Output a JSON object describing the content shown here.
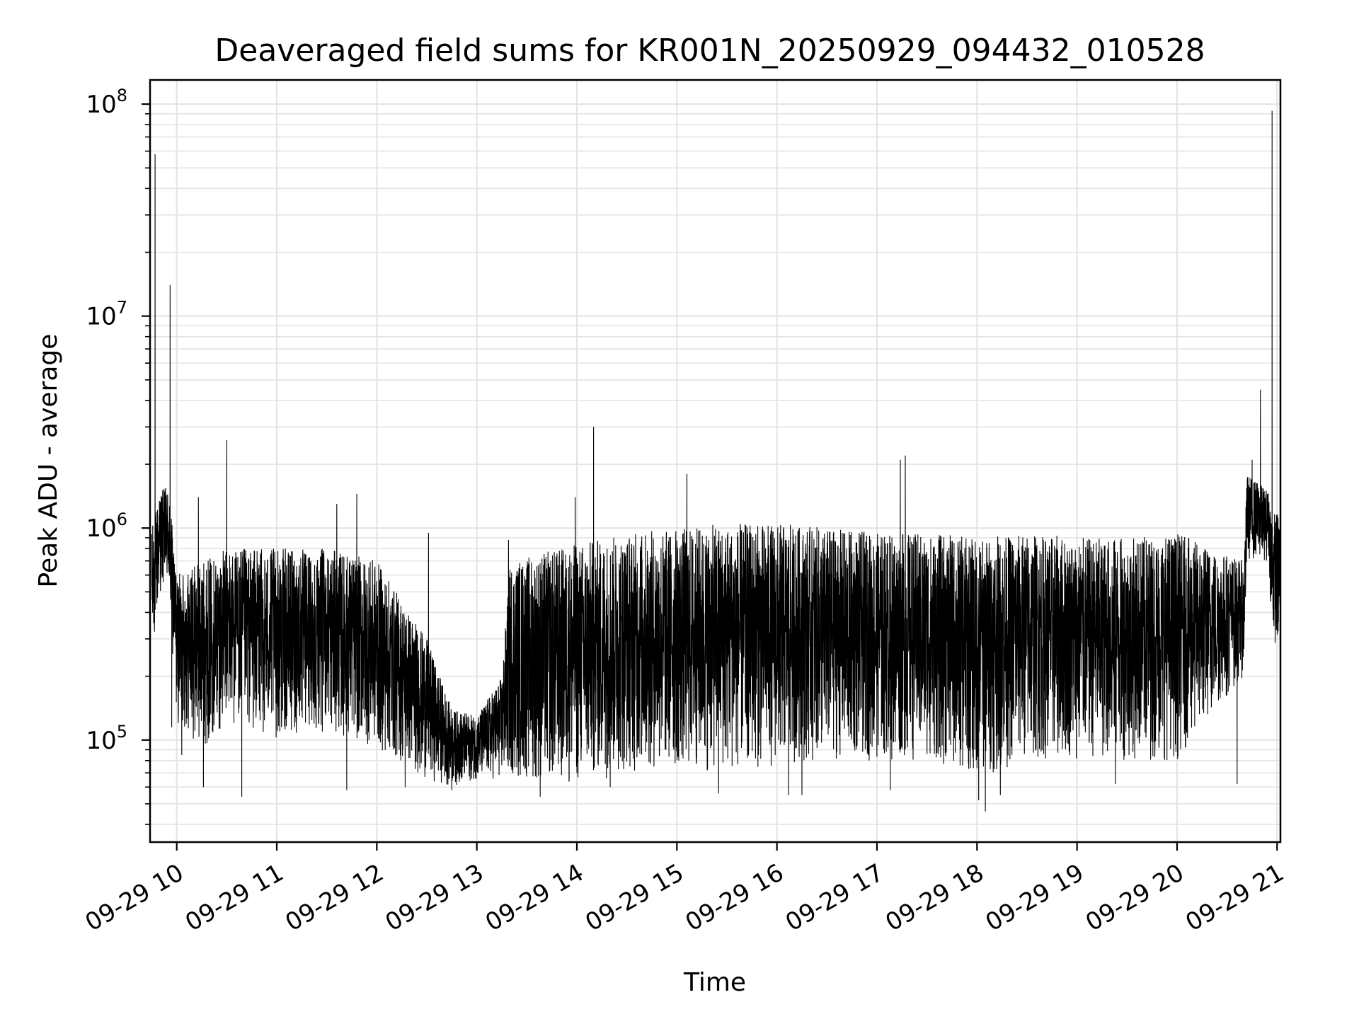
{
  "chart_data": {
    "type": "line",
    "title": "Deaveraged field sums for KR001N_20250929_094432_010528",
    "xlabel": "Time",
    "ylabel": "Peak ADU - average",
    "y_scale": "log",
    "ylim": [
      33000,
      130000000
    ],
    "xlim": [
      "2025-09-29 09:44",
      "2025-09-29 21:02"
    ],
    "grid": true,
    "line_color": "#000000",
    "x_ticks": [
      {
        "label": "09-29 10",
        "value": "2025-09-29 10:00"
      },
      {
        "label": "09-29 11",
        "value": "2025-09-29 11:00"
      },
      {
        "label": "09-29 12",
        "value": "2025-09-29 12:00"
      },
      {
        "label": "09-29 13",
        "value": "2025-09-29 13:00"
      },
      {
        "label": "09-29 14",
        "value": "2025-09-29 14:00"
      },
      {
        "label": "09-29 15",
        "value": "2025-09-29 15:00"
      },
      {
        "label": "09-29 16",
        "value": "2025-09-29 16:00"
      },
      {
        "label": "09-29 17",
        "value": "2025-09-29 17:00"
      },
      {
        "label": "09-29 18",
        "value": "2025-09-29 18:00"
      },
      {
        "label": "09-29 19",
        "value": "2025-09-29 19:00"
      },
      {
        "label": "09-29 20",
        "value": "2025-09-29 20:00"
      },
      {
        "label": "09-29 21",
        "value": "2025-09-29 21:00"
      }
    ],
    "y_ticks": [
      {
        "base": "10",
        "exp": "5",
        "value": 100000
      },
      {
        "base": "10",
        "exp": "6",
        "value": 1000000
      },
      {
        "base": "10",
        "exp": "7",
        "value": 10000000
      },
      {
        "base": "10",
        "exp": "8",
        "value": 100000000
      }
    ],
    "envelope": [
      {
        "time": "2025-09-29 09:45",
        "low": 220000,
        "high": 1000000
      },
      {
        "time": "2025-09-29 09:50",
        "low": 500000,
        "high": 1500000
      },
      {
        "time": "2025-09-29 09:55",
        "low": 500000,
        "high": 1600000
      },
      {
        "time": "2025-09-29 10:00",
        "low": 120000,
        "high": 600000
      },
      {
        "time": "2025-09-29 10:15",
        "low": 90000,
        "high": 700000
      },
      {
        "time": "2025-09-29 10:30",
        "low": 120000,
        "high": 800000
      },
      {
        "time": "2025-09-29 11:00",
        "low": 100000,
        "high": 800000
      },
      {
        "time": "2025-09-29 11:30",
        "low": 110000,
        "high": 800000
      },
      {
        "time": "2025-09-29 12:00",
        "low": 90000,
        "high": 700000
      },
      {
        "time": "2025-09-29 12:30",
        "low": 65000,
        "high": 300000
      },
      {
        "time": "2025-09-29 12:45",
        "low": 60000,
        "high": 140000
      },
      {
        "time": "2025-09-29 13:00",
        "low": 65000,
        "high": 130000
      },
      {
        "time": "2025-09-29 13:15",
        "low": 65000,
        "high": 200000
      },
      {
        "time": "2025-09-29 13:20",
        "low": 65000,
        "high": 700000
      },
      {
        "time": "2025-09-29 14:00",
        "low": 60000,
        "high": 850000
      },
      {
        "time": "2025-09-29 14:30",
        "low": 70000,
        "high": 950000
      },
      {
        "time": "2025-09-29 15:00",
        "low": 70000,
        "high": 1000000
      },
      {
        "time": "2025-09-29 15:30",
        "low": 70000,
        "high": 1050000
      },
      {
        "time": "2025-09-29 16:00",
        "low": 75000,
        "high": 1050000
      },
      {
        "time": "2025-09-29 16:30",
        "low": 80000,
        "high": 1000000
      },
      {
        "time": "2025-09-29 17:00",
        "low": 80000,
        "high": 950000
      },
      {
        "time": "2025-09-29 17:30",
        "low": 80000,
        "high": 950000
      },
      {
        "time": "2025-09-29 18:00",
        "low": 65000,
        "high": 900000
      },
      {
        "time": "2025-09-29 18:30",
        "low": 80000,
        "high": 950000
      },
      {
        "time": "2025-09-29 19:00",
        "low": 80000,
        "high": 900000
      },
      {
        "time": "2025-09-29 19:30",
        "low": 80000,
        "high": 900000
      },
      {
        "time": "2025-09-29 20:00",
        "low": 80000,
        "high": 950000
      },
      {
        "time": "2025-09-29 20:40",
        "low": 200000,
        "high": 700000
      },
      {
        "time": "2025-09-29 20:42",
        "low": 700000,
        "high": 1800000
      },
      {
        "time": "2025-09-29 20:55",
        "low": 700000,
        "high": 1500000
      },
      {
        "time": "2025-09-29 20:57",
        "low": 300000,
        "high": 1200000
      },
      {
        "time": "2025-09-29 21:02",
        "low": 250000,
        "high": 1200000
      }
    ],
    "spikes": [
      {
        "time": "2025-09-29 09:47",
        "value": 58000000
      },
      {
        "time": "2025-09-29 09:56",
        "value": 14000000
      },
      {
        "time": "2025-09-29 10:13",
        "value": 1400000
      },
      {
        "time": "2025-09-29 10:30",
        "value": 2600000
      },
      {
        "time": "2025-09-29 11:36",
        "value": 1300000
      },
      {
        "time": "2025-09-29 11:48",
        "value": 1450000
      },
      {
        "time": "2025-09-29 12:31",
        "value": 950000
      },
      {
        "time": "2025-09-29 13:19",
        "value": 880000
      },
      {
        "time": "2025-09-29 13:59",
        "value": 1400000
      },
      {
        "time": "2025-09-29 14:10",
        "value": 3000000
      },
      {
        "time": "2025-09-29 15:06",
        "value": 1800000
      },
      {
        "time": "2025-09-29 17:14",
        "value": 2100000
      },
      {
        "time": "2025-09-29 17:17",
        "value": 2200000
      },
      {
        "time": "2025-09-29 20:45",
        "value": 2100000
      },
      {
        "time": "2025-09-29 20:50",
        "value": 4500000
      },
      {
        "time": "2025-09-29 20:57",
        "value": 93000000
      }
    ],
    "dips": [
      {
        "time": "2025-09-29 09:57",
        "value": 115000
      },
      {
        "time": "2025-09-29 10:03",
        "value": 85000
      },
      {
        "time": "2025-09-29 10:16",
        "value": 60000
      },
      {
        "time": "2025-09-29 10:39",
        "value": 54000
      },
      {
        "time": "2025-09-29 11:42",
        "value": 58000
      },
      {
        "time": "2025-09-29 12:17",
        "value": 60000
      },
      {
        "time": "2025-09-29 12:45",
        "value": 58000
      },
      {
        "time": "2025-09-29 13:38",
        "value": 54000
      },
      {
        "time": "2025-09-29 14:20",
        "value": 60000
      },
      {
        "time": "2025-09-29 15:25",
        "value": 56000
      },
      {
        "time": "2025-09-29 16:07",
        "value": 55000
      },
      {
        "time": "2025-09-29 16:15",
        "value": 55000
      },
      {
        "time": "2025-09-29 17:08",
        "value": 58000
      },
      {
        "time": "2025-09-29 18:01",
        "value": 52000
      },
      {
        "time": "2025-09-29 18:05",
        "value": 46000
      },
      {
        "time": "2025-09-29 18:14",
        "value": 55000
      },
      {
        "time": "2025-09-29 19:23",
        "value": 62000
      },
      {
        "time": "2025-09-29 20:36",
        "value": 62000
      }
    ]
  }
}
